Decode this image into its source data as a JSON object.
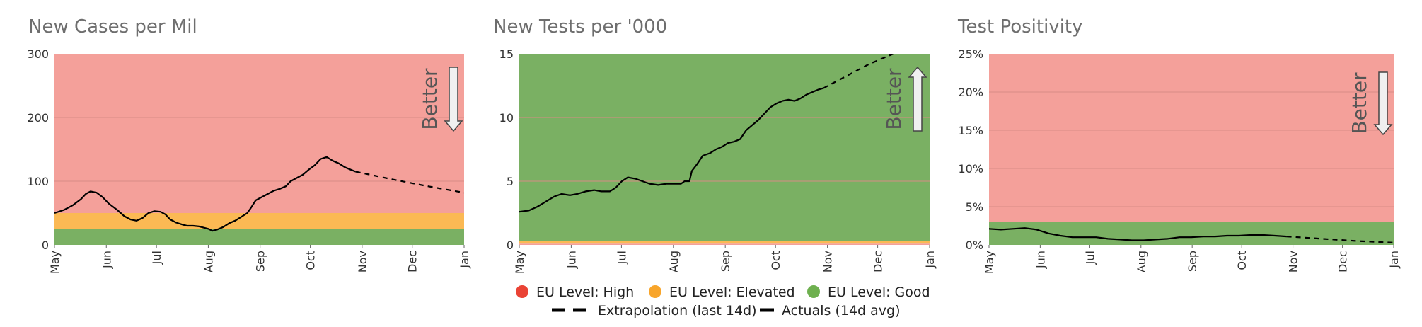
{
  "colors": {
    "high": "#f4a09a",
    "elevated": "#fbb954",
    "good": "#7ab063",
    "grid": "#d88c86",
    "line": "#000000",
    "legend_high": "#ea4335",
    "legend_elevated": "#f8a52b",
    "legend_good": "#6eb04f"
  },
  "months": [
    "May",
    "Jun",
    "Jul",
    "Aug",
    "Sep",
    "Oct",
    "Nov",
    "Dec",
    "Jan"
  ],
  "better_label": "Better",
  "legend": {
    "high": "EU Level: High",
    "elevated": "EU Level: Elevated",
    "good": "EU Level: Good",
    "extrapolation": "Extrapolation (last 14d)",
    "actuals": "Actuals (14d avg)"
  },
  "chart_data": [
    {
      "type": "line",
      "title": "New Cases per Mil",
      "ylim": [
        0,
        300
      ],
      "yticks": [
        0,
        100,
        200,
        300
      ],
      "ytick_labels": [
        "0",
        "100",
        "200",
        "300"
      ],
      "bands": [
        {
          "level": "good",
          "from": 0,
          "to": 25
        },
        {
          "level": "elevated",
          "from": 25,
          "to": 50
        },
        {
          "level": "high",
          "from": 50,
          "to": 300
        }
      ],
      "better_direction": "down",
      "actuals": [
        [
          0,
          50
        ],
        [
          8,
          55
        ],
        [
          15,
          62
        ],
        [
          22,
          72
        ],
        [
          26,
          80
        ],
        [
          30,
          84
        ],
        [
          35,
          82
        ],
        [
          40,
          75
        ],
        [
          45,
          65
        ],
        [
          52,
          55
        ],
        [
          58,
          45
        ],
        [
          63,
          40
        ],
        [
          68,
          38
        ],
        [
          73,
          42
        ],
        [
          78,
          50
        ],
        [
          83,
          53
        ],
        [
          88,
          52
        ],
        [
          92,
          48
        ],
        [
          96,
          40
        ],
        [
          101,
          35
        ],
        [
          106,
          32
        ],
        [
          110,
          30
        ],
        [
          115,
          30
        ],
        [
          120,
          29
        ],
        [
          124,
          27
        ],
        [
          128,
          25
        ],
        [
          131,
          22
        ],
        [
          135,
          24
        ],
        [
          140,
          28
        ],
        [
          145,
          34
        ],
        [
          150,
          38
        ],
        [
          155,
          44
        ],
        [
          160,
          50
        ],
        [
          163,
          58
        ],
        [
          167,
          70
        ],
        [
          172,
          75
        ],
        [
          177,
          80
        ],
        [
          182,
          85
        ],
        [
          187,
          88
        ],
        [
          192,
          92
        ],
        [
          196,
          100
        ],
        [
          201,
          105
        ],
        [
          206,
          110
        ],
        [
          211,
          118
        ],
        [
          216,
          125
        ],
        [
          221,
          135
        ],
        [
          226,
          138
        ],
        [
          231,
          132
        ],
        [
          236,
          128
        ],
        [
          241,
          122
        ],
        [
          246,
          118
        ],
        [
          250,
          115
        ]
      ],
      "extrapolation": [
        [
          250,
          115
        ],
        [
          280,
          103
        ],
        [
          310,
          92
        ],
        [
          340,
          82
        ]
      ]
    },
    {
      "type": "line",
      "title": "New Tests per '000",
      "ylim": [
        0,
        15
      ],
      "yticks": [
        0,
        5,
        10,
        15
      ],
      "ytick_labels": [
        "0",
        "5",
        "10",
        "15"
      ],
      "bands": [
        {
          "level": "high",
          "from": 0,
          "to": 0.1
        },
        {
          "level": "elevated",
          "from": 0.1,
          "to": 0.3
        },
        {
          "level": "good",
          "from": 0.3,
          "to": 15
        }
      ],
      "better_direction": "up",
      "actuals": [
        [
          0,
          2.6
        ],
        [
          8,
          2.7
        ],
        [
          15,
          3.0
        ],
        [
          22,
          3.4
        ],
        [
          29,
          3.8
        ],
        [
          35,
          4.0
        ],
        [
          42,
          3.9
        ],
        [
          48,
          4.0
        ],
        [
          55,
          4.2
        ],
        [
          62,
          4.3
        ],
        [
          68,
          4.2
        ],
        [
          75,
          4.2
        ],
        [
          80,
          4.5
        ],
        [
          85,
          5.0
        ],
        [
          90,
          5.3
        ],
        [
          96,
          5.2
        ],
        [
          102,
          5.0
        ],
        [
          108,
          4.8
        ],
        [
          115,
          4.7
        ],
        [
          122,
          4.8
        ],
        [
          128,
          4.8
        ],
        [
          134,
          4.8
        ],
        [
          137,
          5.0
        ],
        [
          141,
          5.0
        ],
        [
          143,
          5.8
        ],
        [
          147,
          6.3
        ],
        [
          152,
          7.0
        ],
        [
          158,
          7.2
        ],
        [
          163,
          7.5
        ],
        [
          168,
          7.7
        ],
        [
          173,
          8.0
        ],
        [
          178,
          8.1
        ],
        [
          183,
          8.3
        ],
        [
          188,
          9.0
        ],
        [
          193,
          9.4
        ],
        [
          198,
          9.8
        ],
        [
          203,
          10.3
        ],
        [
          208,
          10.8
        ],
        [
          213,
          11.1
        ],
        [
          218,
          11.3
        ],
        [
          223,
          11.4
        ],
        [
          228,
          11.3
        ],
        [
          233,
          11.5
        ],
        [
          238,
          11.8
        ],
        [
          243,
          12.0
        ],
        [
          248,
          12.2
        ],
        [
          252,
          12.3
        ]
      ],
      "extrapolation": [
        [
          252,
          12.3
        ],
        [
          270,
          13.2
        ],
        [
          290,
          14.2
        ],
        [
          310,
          15.2
        ]
      ]
    },
    {
      "type": "line",
      "title": "Test Positivity",
      "ylim": [
        0,
        25
      ],
      "yticks": [
        0,
        5,
        10,
        15,
        20,
        25
      ],
      "ytick_labels": [
        "0%",
        "5%",
        "10%",
        "15%",
        "20%",
        "25%"
      ],
      "bands": [
        {
          "level": "good",
          "from": 0,
          "to": 3
        },
        {
          "level": "high",
          "from": 3,
          "to": 25
        }
      ],
      "better_direction": "down",
      "actuals": [
        [
          0,
          2.1
        ],
        [
          10,
          2.0
        ],
        [
          20,
          2.1
        ],
        [
          30,
          2.2
        ],
        [
          40,
          2.0
        ],
        [
          50,
          1.5
        ],
        [
          60,
          1.2
        ],
        [
          70,
          1.0
        ],
        [
          80,
          1.0
        ],
        [
          90,
          1.0
        ],
        [
          100,
          0.8
        ],
        [
          110,
          0.7
        ],
        [
          120,
          0.6
        ],
        [
          130,
          0.6
        ],
        [
          140,
          0.7
        ],
        [
          150,
          0.8
        ],
        [
          160,
          1.0
        ],
        [
          170,
          1.0
        ],
        [
          180,
          1.1
        ],
        [
          190,
          1.1
        ],
        [
          200,
          1.2
        ],
        [
          210,
          1.2
        ],
        [
          220,
          1.3
        ],
        [
          230,
          1.3
        ],
        [
          240,
          1.2
        ],
        [
          250,
          1.1
        ]
      ],
      "extrapolation": [
        [
          250,
          1.1
        ],
        [
          280,
          0.8
        ],
        [
          310,
          0.5
        ],
        [
          340,
          0.3
        ]
      ]
    }
  ]
}
